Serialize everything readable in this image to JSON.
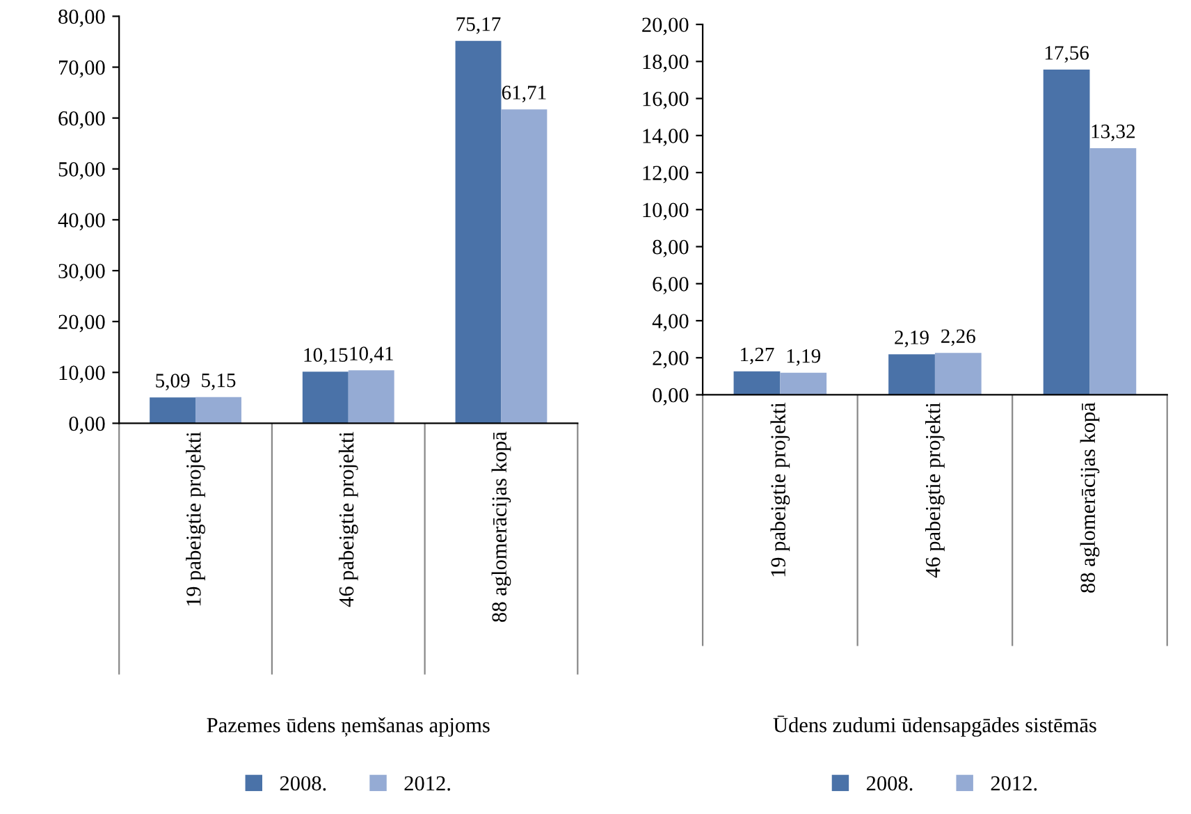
{
  "chart_data": [
    {
      "type": "bar",
      "xlabel": "Pazemes ūdens ņemšanas apjoms",
      "categories": [
        "19 pabeigtie projekti",
        "46 pabeigtie projekti",
        "88 aglomerācijas kopā"
      ],
      "series": [
        {
          "name": "2008.",
          "color": "#4a72a8",
          "values": [
            5.09,
            10.15,
            75.17
          ],
          "value_labels": [
            "5,09",
            "10,15",
            "75,17"
          ]
        },
        {
          "name": "2012.",
          "color": "#95abd4",
          "values": [
            5.15,
            10.41,
            61.71
          ],
          "value_labels": [
            "5,15",
            "10,41",
            "61,71"
          ]
        }
      ],
      "ylim": [
        0,
        80
      ],
      "yticks": [
        {
          "value": 0,
          "label": "0,00"
        },
        {
          "value": 10,
          "label": "10,00"
        },
        {
          "value": 20,
          "label": "20,00"
        },
        {
          "value": 30,
          "label": "30,00"
        },
        {
          "value": 40,
          "label": "40,00"
        },
        {
          "value": 50,
          "label": "50,00"
        },
        {
          "value": 60,
          "label": "60,00"
        },
        {
          "value": 70,
          "label": "70,00"
        },
        {
          "value": 80,
          "label": "80,00"
        }
      ],
      "legend": "bottom",
      "grid": false
    },
    {
      "type": "bar",
      "xlabel": "Ūdens zudumi ūdensapgādes sistēmās",
      "categories": [
        "19 pabeigtie projekti",
        "46 pabeigtie projekti",
        "88 aglomerācijas kopā"
      ],
      "series": [
        {
          "name": "2008.",
          "color": "#4a72a8",
          "values": [
            1.27,
            2.19,
            17.56
          ],
          "value_labels": [
            "1,27",
            "2,19",
            "17,56"
          ]
        },
        {
          "name": "2012.",
          "color": "#95abd4",
          "values": [
            1.19,
            2.26,
            13.32
          ],
          "value_labels": [
            "1,19",
            "2,26",
            "13,32"
          ]
        }
      ],
      "ylim": [
        0,
        20
      ],
      "yticks": [
        {
          "value": 0,
          "label": "0,00"
        },
        {
          "value": 2,
          "label": "2,00"
        },
        {
          "value": 4,
          "label": "4,00"
        },
        {
          "value": 6,
          "label": "6,00"
        },
        {
          "value": 8,
          "label": "8,00"
        },
        {
          "value": 10,
          "label": "10,00"
        },
        {
          "value": 12,
          "label": "12,00"
        },
        {
          "value": 14,
          "label": "14,00"
        },
        {
          "value": 16,
          "label": "16,00"
        },
        {
          "value": 18,
          "label": "18,00"
        },
        {
          "value": 20,
          "label": "20,00"
        }
      ],
      "legend": "bottom",
      "grid": false
    }
  ]
}
